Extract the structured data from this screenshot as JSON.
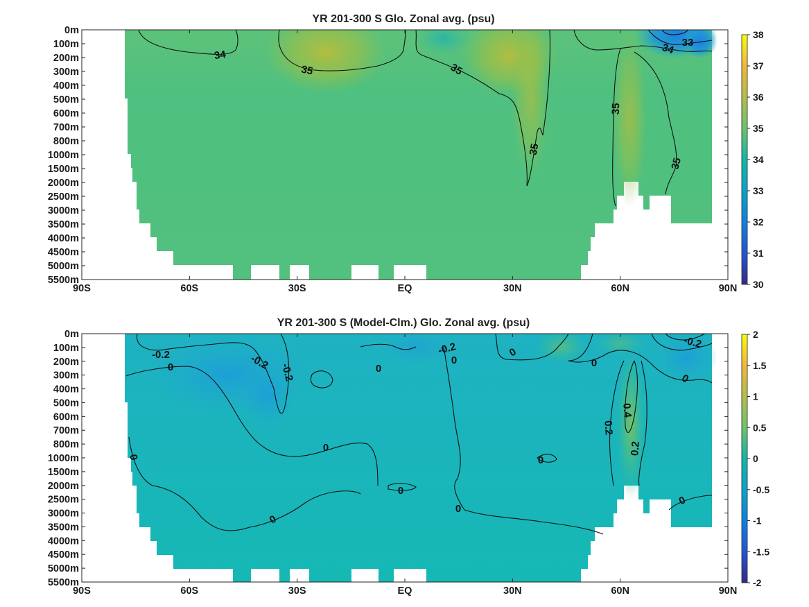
{
  "chart_data": [
    {
      "type": "heatmap",
      "title": "YR 201-300 S Glo. Zonal avg. (psu)",
      "x_ticks": [
        "90S",
        "60S",
        "30S",
        "EQ",
        "30N",
        "60N",
        "90N"
      ],
      "y_ticks": [
        "0m",
        "100m",
        "200m",
        "300m",
        "400m",
        "500m",
        "600m",
        "700m",
        "800m",
        "1000m",
        "1500m",
        "2000m",
        "2500m",
        "3000m",
        "3500m",
        "4000m",
        "4500m",
        "5000m",
        "5500m"
      ],
      "xlim": [
        -90,
        90
      ],
      "colorbar": {
        "min": 30,
        "max": 38,
        "ticks": [
          "38",
          "37",
          "36",
          "35",
          "34",
          "33",
          "32",
          "31",
          "30"
        ]
      },
      "contour_labels": [
        "34",
        "35",
        "35",
        "35",
        "35",
        "35",
        "34",
        "33"
      ],
      "description_values": {
        "typical_interior": 34.7,
        "north_atlantic_max": 35.5,
        "arctic_surface_min": 32.5
      }
    },
    {
      "type": "heatmap",
      "title": "YR 201-300 S (Model-Clm.) Glo. Zonal avg. (psu)",
      "x_ticks": [
        "90S",
        "60S",
        "30S",
        "EQ",
        "30N",
        "60N",
        "90N"
      ],
      "y_ticks": [
        "0m",
        "100m",
        "200m",
        "300m",
        "400m",
        "500m",
        "600m",
        "700m",
        "800m",
        "1000m",
        "1500m",
        "2000m",
        "2500m",
        "3000m",
        "3500m",
        "4000m",
        "4500m",
        "5000m",
        "5500m"
      ],
      "xlim": [
        -90,
        90
      ],
      "colorbar": {
        "min": -2,
        "max": 2,
        "ticks": [
          "2",
          "1.5",
          "1",
          "0.5",
          "0",
          "-0.5",
          "-1",
          "-1.5",
          "-2"
        ]
      },
      "contour_labels": [
        "-0.2",
        "0",
        "-0.2",
        "-0.2",
        "0",
        "-0.2",
        "0",
        "0",
        "0",
        "0",
        "0",
        "0.4",
        "0.2",
        "0.2",
        "0",
        "0",
        "0",
        "0",
        "0",
        "0",
        "-0.2"
      ]
    }
  ],
  "colors": {
    "axis": "#000000",
    "land": "#ffffff",
    "contour": "#111111"
  }
}
